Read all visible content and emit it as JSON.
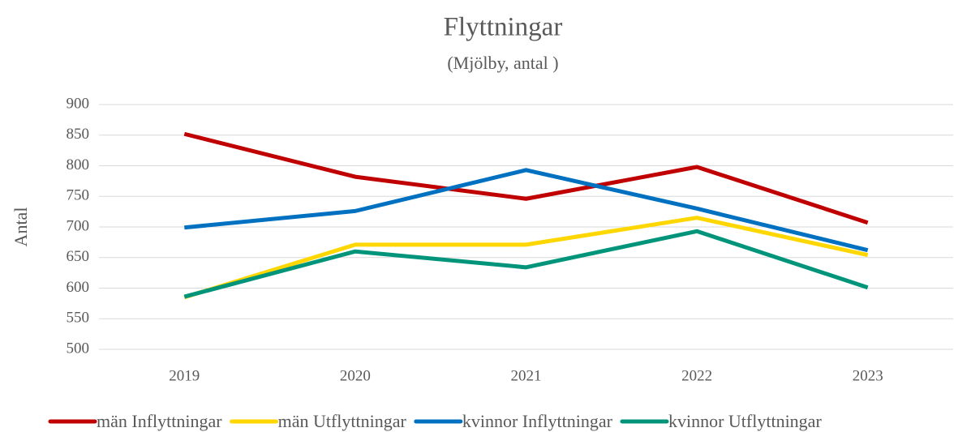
{
  "chart_data": {
    "type": "line",
    "title": "Flyttningar",
    "subtitle": "(Mjölby, antal )",
    "y_label": "Antal",
    "categories": [
      "2019",
      "2020",
      "2021",
      "2022",
      "2023"
    ],
    "series": [
      {
        "name": "män Inflyttningar",
        "color": "#c00000",
        "values": [
          852,
          782,
          746,
          798,
          707
        ]
      },
      {
        "name": "män Utflyttningar",
        "color": "#ffd700",
        "values": [
          585,
          671,
          671,
          715,
          654
        ]
      },
      {
        "name": "kvinnor Inflyttningar",
        "color": "#0070c0",
        "values": [
          699,
          726,
          793,
          730,
          662
        ]
      },
      {
        "name": "kvinnor Utflyttningar",
        "color": "#00957a",
        "values": [
          586,
          660,
          634,
          693,
          601
        ]
      }
    ],
    "ylim": [
      500,
      900
    ],
    "yticks": [
      500,
      550,
      600,
      650,
      700,
      750,
      800,
      850,
      900
    ],
    "grid": true,
    "legend": "bottom"
  }
}
